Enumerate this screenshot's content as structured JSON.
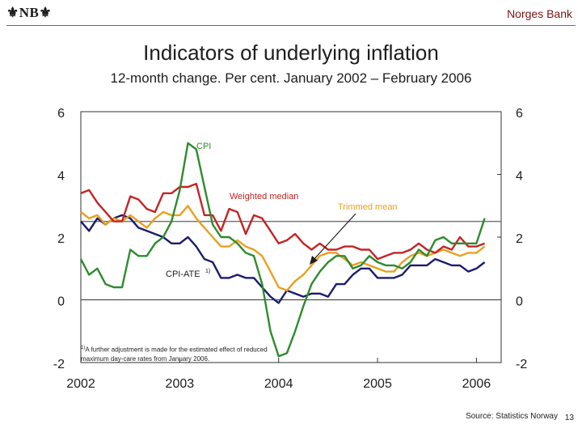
{
  "header": {
    "logo_text": "NB",
    "bank_name": "Norges Bank"
  },
  "footer": {
    "source": "Source: Statistics Norway",
    "page_number": "13"
  },
  "colors": {
    "cpi": "#2e8b2e",
    "weighted_median": "#c42424",
    "trimmed_mean": "#e8a020",
    "cpi_ate": "#1b1b6e",
    "reference": "#777777"
  },
  "chart_data": {
    "type": "line",
    "title": "Indicators of underlying inflation",
    "subtitle": "12-month change. Per cent. January 2002 – February 2006",
    "xlabel": "",
    "ylabel": "",
    "ylim": [
      -2,
      6
    ],
    "xlim": [
      2002,
      2006.25
    ],
    "yticks": [
      "6",
      "4",
      "2",
      "0",
      "-2"
    ],
    "xticks": [
      "2002",
      "2003",
      "2004",
      "2005",
      "2006"
    ],
    "reference_line": 2.5,
    "footnote": {
      "marker": "1)",
      "text": "A further adjustment is made for the estimated effect of reduced maximum day-care rates from January 2006."
    },
    "annotations": {
      "cpi": "CPI",
      "weighted_median": "Weighted median",
      "trimmed_mean": "Trimmed mean",
      "cpi_ate": "CPI-ATE",
      "cpi_ate_sup": "1)"
    },
    "x": [
      2002.0,
      2002.083,
      2002.167,
      2002.25,
      2002.333,
      2002.417,
      2002.5,
      2002.583,
      2002.667,
      2002.75,
      2002.833,
      2002.917,
      2003.0,
      2003.083,
      2003.167,
      2003.25,
      2003.333,
      2003.417,
      2003.5,
      2003.583,
      2003.667,
      2003.75,
      2003.833,
      2003.917,
      2004.0,
      2004.083,
      2004.167,
      2004.25,
      2004.333,
      2004.417,
      2004.5,
      2004.583,
      2004.667,
      2004.75,
      2004.833,
      2004.917,
      2005.0,
      2005.083,
      2005.167,
      2005.25,
      2005.333,
      2005.417,
      2005.5,
      2005.583,
      2005.667,
      2005.75,
      2005.833,
      2005.917,
      2006.0,
      2006.083
    ],
    "series": [
      {
        "name": "CPI",
        "key": "cpi",
        "values": [
          1.3,
          0.8,
          1.0,
          0.5,
          0.4,
          0.4,
          1.6,
          1.4,
          1.4,
          1.8,
          2.0,
          2.5,
          3.5,
          5.0,
          4.8,
          3.6,
          2.4,
          2.0,
          2.0,
          1.8,
          1.5,
          1.4,
          0.5,
          -1.0,
          -1.8,
          -1.7,
          -1.0,
          -0.2,
          0.5,
          0.9,
          1.2,
          1.4,
          1.4,
          1.0,
          1.1,
          1.4,
          1.2,
          1.1,
          1.1,
          1.0,
          1.2,
          1.6,
          1.4,
          1.9,
          2.0,
          1.8,
          1.8,
          1.8,
          1.8,
          2.6
        ]
      },
      {
        "name": "Weighted median",
        "key": "weighted_median",
        "values": [
          3.4,
          3.5,
          3.1,
          2.8,
          2.5,
          2.5,
          3.3,
          3.2,
          2.9,
          2.8,
          3.4,
          3.4,
          3.6,
          3.6,
          3.7,
          2.7,
          2.7,
          2.2,
          2.9,
          2.8,
          2.1,
          2.7,
          2.6,
          2.2,
          1.8,
          1.9,
          2.1,
          1.8,
          1.6,
          1.8,
          1.6,
          1.6,
          1.7,
          1.7,
          1.6,
          1.6,
          1.3,
          1.4,
          1.5,
          1.5,
          1.6,
          1.8,
          1.6,
          1.5,
          1.7,
          1.6,
          2.0,
          1.7,
          1.7,
          1.8
        ]
      },
      {
        "name": "Trimmed mean",
        "key": "trimmed_mean",
        "values": [
          2.8,
          2.6,
          2.7,
          2.4,
          2.6,
          2.5,
          2.7,
          2.5,
          2.3,
          2.6,
          2.8,
          2.7,
          2.7,
          3.0,
          2.6,
          2.3,
          2.0,
          1.7,
          1.7,
          1.9,
          1.7,
          1.6,
          1.4,
          0.9,
          0.4,
          0.3,
          0.6,
          0.8,
          1.1,
          1.4,
          1.5,
          1.5,
          1.3,
          1.1,
          1.2,
          1.1,
          1.0,
          0.9,
          0.9,
          1.2,
          1.4,
          1.5,
          1.4,
          1.5,
          1.6,
          1.5,
          1.4,
          1.5,
          1.5,
          1.7
        ]
      },
      {
        "name": "CPI-ATE",
        "key": "cpi_ate",
        "values": [
          2.5,
          2.2,
          2.6,
          2.4,
          2.6,
          2.7,
          2.6,
          2.3,
          2.2,
          2.1,
          2.0,
          1.8,
          1.8,
          2.0,
          1.7,
          1.3,
          1.2,
          0.7,
          0.7,
          0.8,
          0.7,
          0.7,
          0.4,
          0.1,
          -0.1,
          0.3,
          0.2,
          0.1,
          0.2,
          0.2,
          0.1,
          0.5,
          0.5,
          0.8,
          1.0,
          1.0,
          0.7,
          0.7,
          0.7,
          0.8,
          1.1,
          1.1,
          1.1,
          1.3,
          1.2,
          1.1,
          1.1,
          0.9,
          1.0,
          1.2
        ]
      }
    ]
  }
}
